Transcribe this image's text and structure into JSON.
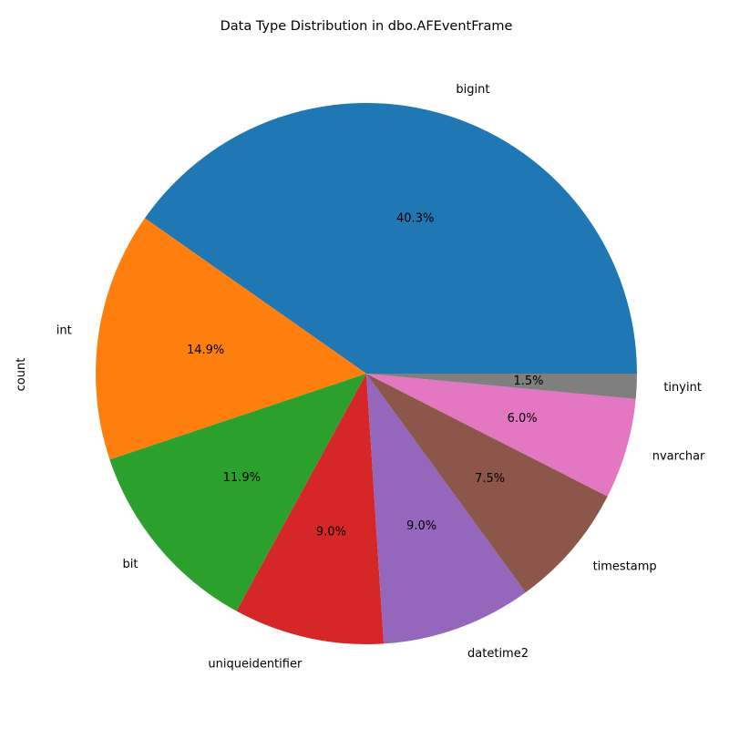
{
  "chart_data": {
    "type": "pie",
    "title": "Data Type Distribution in dbo.AFEventFrame",
    "ylabel": "count",
    "categories": [
      "bigint",
      "int",
      "bit",
      "uniqueidentifier",
      "datetime2",
      "timestamp",
      "nvarchar",
      "tinyint"
    ],
    "values": [
      40.3,
      14.9,
      11.9,
      9.0,
      9.0,
      7.5,
      6.0,
      1.5
    ],
    "value_labels": [
      "40.3%",
      "14.9%",
      "11.9%",
      "9.0%",
      "9.0%",
      "7.5%",
      "6.0%",
      "1.5%"
    ],
    "colors": [
      "#1f77b4",
      "#ff7f0e",
      "#2ca02c",
      "#d62728",
      "#9467bd",
      "#8c564b",
      "#e377c2",
      "#7f7f7f"
    ],
    "start_angle": "0deg (3 o'clock)",
    "direction": "counterclockwise"
  }
}
